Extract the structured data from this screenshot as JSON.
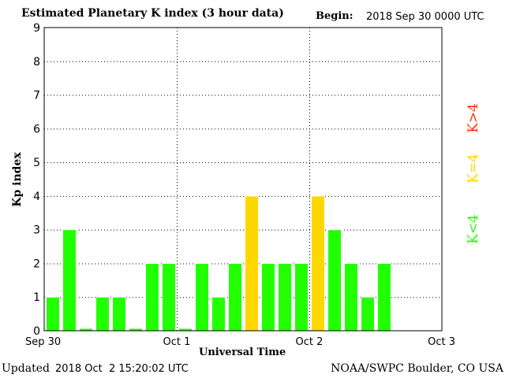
{
  "header": {
    "title": "Estimated Planetary K index (3 hour data)",
    "begin_label": "Begin:",
    "begin_value": "2018 Sep 30 0000 UTC"
  },
  "footer": {
    "updated_label": "Updated",
    "updated_value": "2018 Oct  2 15:20:02 UTC",
    "credit": "NOAA/SWPC Boulder, CO USA"
  },
  "legend": {
    "above": "K>4",
    "equal": "K=4",
    "below": "K<4"
  },
  "colors": {
    "below": "#22ff00",
    "equal": "#ffd700",
    "above": "#ff3300",
    "grid": "#000000",
    "bar_edge": "#ffffff"
  },
  "chart_data": {
    "type": "bar",
    "title": "Estimated Planetary K index (3 hour data)",
    "xlabel": "Universal Time",
    "ylabel": "Kp index",
    "ylim": [
      0,
      9
    ],
    "y_ticks": [
      "0",
      "1",
      "2",
      "3",
      "4",
      "5",
      "6",
      "7",
      "8",
      "9"
    ],
    "x_ticks": [
      "Sep 30",
      "Oct 1",
      "Oct 2",
      "Oct 3"
    ],
    "interval_hours": 3,
    "total_slots": 24,
    "grid": true,
    "values": [
      1,
      3,
      0.07,
      1,
      1,
      0.07,
      2,
      2,
      0.07,
      2,
      1,
      2,
      4,
      2,
      2,
      2,
      4,
      3,
      2,
      1,
      2
    ]
  }
}
